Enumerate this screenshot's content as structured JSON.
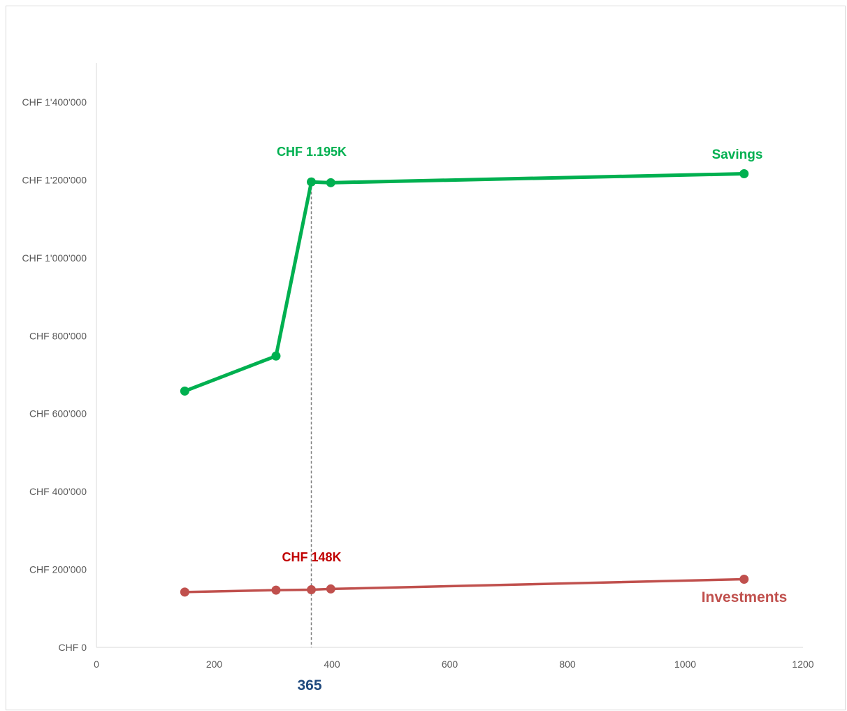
{
  "chart_data": {
    "type": "scatter",
    "xlim": [
      0,
      1200
    ],
    "ylim": [
      0,
      1400000
    ],
    "x_ticks": [
      {
        "value": 0,
        "label": "0"
      },
      {
        "value": 200,
        "label": "200"
      },
      {
        "value": 400,
        "label": "400"
      },
      {
        "value": 600,
        "label": "600"
      },
      {
        "value": 800,
        "label": "800"
      },
      {
        "value": 1000,
        "label": "1000"
      },
      {
        "value": 1200,
        "label": "1200"
      }
    ],
    "y_ticks": [
      {
        "value": 0,
        "label": "CHF 0"
      },
      {
        "value": 200000,
        "label": "CHF 200'000"
      },
      {
        "value": 400000,
        "label": "CHF 400'000"
      },
      {
        "value": 600000,
        "label": "CHF 600'000"
      },
      {
        "value": 800000,
        "label": "CHF 800'000"
      },
      {
        "value": 1000000,
        "label": "CHF 1'000'000"
      },
      {
        "value": 1200000,
        "label": "CHF 1'200'000"
      },
      {
        "value": 1400000,
        "label": "CHF 1'400'000"
      }
    ],
    "grid": false,
    "series": [
      {
        "name": "Savings",
        "color": "#00b050",
        "x": [
          150,
          305,
          365,
          398,
          1100
        ],
        "y": [
          658000,
          748000,
          1195000,
          1193000,
          1216000
        ]
      },
      {
        "name": "Investments",
        "color": "#c0504d",
        "x": [
          150,
          305,
          365,
          398,
          1100
        ],
        "y": [
          142000,
          147000,
          148000,
          150000,
          175000
        ]
      }
    ],
    "annotations": [
      {
        "text": "CHF 1.195K",
        "color": "#00b050",
        "x": 365,
        "y": 1195000
      },
      {
        "text": "CHF 148K",
        "color": "#c00000",
        "x": 365,
        "y": 148000
      },
      {
        "text": "365",
        "color": "#1f497d",
        "x": 365
      }
    ],
    "reference_line": {
      "x": 365,
      "style": "dashed",
      "color": "#7f7f7f"
    }
  }
}
